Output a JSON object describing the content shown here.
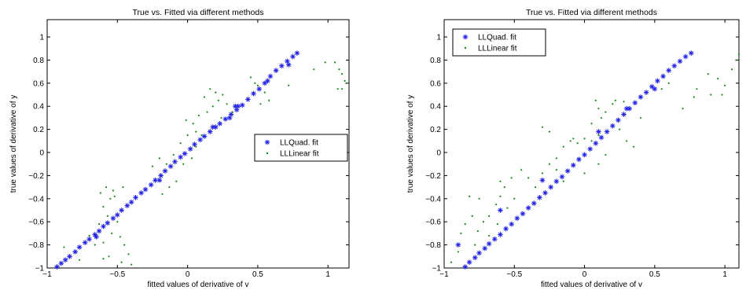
{
  "chart_data": [
    {
      "type": "scatter",
      "title": "True vs. Fitted via different methods",
      "xlabel": "fitted values of derivative of v",
      "ylabel": "true values of derivative of y",
      "xlim": [
        -1,
        1.15
      ],
      "ylim": [
        -1,
        1.15
      ],
      "xticks": [
        -1,
        -0.5,
        0,
        0.5,
        1
      ],
      "xtick_labels": [
        "−1",
        "−0.5",
        "0",
        "0.5",
        "1"
      ],
      "yticks": [
        -1,
        -0.8,
        -0.6,
        -0.4,
        -0.2,
        0,
        0.2,
        0.4,
        0.6,
        0.8,
        1
      ],
      "ytick_labels": [
        "−1",
        "−0.8",
        "−0.6",
        "−0.4",
        "−0.2",
        "0",
        "0.2",
        "0.4",
        "0.6",
        "0.8",
        "1"
      ],
      "grid": false,
      "legend_position": "right-middle",
      "series": [
        {
          "name": "LLQuad. fit",
          "marker": "asterisk",
          "color": "#1f1fe6",
          "points": [
            [
              -0.93,
              -0.99
            ],
            [
              -0.9,
              -0.96
            ],
            [
              -0.87,
              -0.93
            ],
            [
              -0.84,
              -0.9
            ],
            [
              -0.8,
              -0.86
            ],
            [
              -0.77,
              -0.82
            ],
            [
              -0.73,
              -0.78
            ],
            [
              -0.7,
              -0.75
            ],
            [
              -0.66,
              -0.71
            ],
            [
              -0.63,
              -0.68
            ],
            [
              -0.6,
              -0.64
            ],
            [
              -0.57,
              -0.61
            ],
            [
              -0.53,
              -0.57
            ],
            [
              -0.5,
              -0.54
            ],
            [
              -0.47,
              -0.5
            ],
            [
              -0.43,
              -0.46
            ],
            [
              -0.4,
              -0.43
            ],
            [
              -0.37,
              -0.39
            ],
            [
              -0.33,
              -0.35
            ],
            [
              -0.3,
              -0.32
            ],
            [
              -0.26,
              -0.28
            ],
            [
              -0.23,
              -0.24
            ],
            [
              -0.19,
              -0.2
            ],
            [
              -0.16,
              -0.16
            ],
            [
              -0.12,
              -0.12
            ],
            [
              -0.09,
              -0.08
            ],
            [
              -0.05,
              -0.04
            ],
            [
              -0.02,
              -0.01
            ],
            [
              0.02,
              0.03
            ],
            [
              0.05,
              0.07
            ],
            [
              0.09,
              0.11
            ],
            [
              0.12,
              0.14
            ],
            [
              0.16,
              0.18
            ],
            [
              0.2,
              0.22
            ],
            [
              0.23,
              0.25
            ],
            [
              0.27,
              0.29
            ],
            [
              0.31,
              0.33
            ],
            [
              0.35,
              0.37
            ],
            [
              0.39,
              0.41
            ],
            [
              0.43,
              0.46
            ],
            [
              0.47,
              0.51
            ],
            [
              0.51,
              0.55
            ],
            [
              0.55,
              0.6
            ],
            [
              0.59,
              0.66
            ],
            [
              0.63,
              0.71
            ],
            [
              0.67,
              0.75
            ],
            [
              0.71,
              0.79
            ],
            [
              0.75,
              0.83
            ],
            [
              0.78,
              0.86
            ],
            [
              -0.2,
              -0.24
            ],
            [
              0.18,
              0.22
            ],
            [
              0.34,
              0.4
            ],
            [
              0.57,
              0.62
            ],
            [
              -0.65,
              -0.73
            ],
            [
              0.72,
              0.76
            ],
            [
              0.3,
              0.3
            ],
            [
              0.36,
              0.4
            ]
          ]
        },
        {
          "name": "LLLinear fit",
          "marker": "dot",
          "color": "#1a8a1a",
          "points": [
            [
              -0.62,
              -0.35
            ],
            [
              -0.58,
              -0.3
            ],
            [
              -0.55,
              -0.4
            ],
            [
              -0.6,
              -0.47
            ],
            [
              -0.52,
              -0.38
            ],
            [
              -0.57,
              -0.55
            ],
            [
              -0.63,
              -0.62
            ],
            [
              -0.5,
              -0.6
            ],
            [
              -0.54,
              -0.7
            ],
            [
              -0.6,
              -0.78
            ],
            [
              -0.48,
              -0.73
            ],
            [
              -0.45,
              -0.8
            ],
            [
              -0.42,
              -0.88
            ],
            [
              -0.47,
              -0.95
            ],
            [
              -0.56,
              -0.9
            ],
            [
              -0.66,
              -0.8
            ],
            [
              -0.7,
              -0.72
            ],
            [
              -0.6,
              -0.92
            ],
            [
              -0.88,
              -0.82
            ],
            [
              -0.77,
              -0.93
            ],
            [
              -0.4,
              -0.97
            ],
            [
              -0.53,
              -0.33
            ],
            [
              -0.46,
              -0.3
            ],
            [
              -0.13,
              -0.3
            ],
            [
              -0.18,
              -0.36
            ],
            [
              -0.08,
              -0.25
            ],
            [
              -0.03,
              -0.1
            ],
            [
              0.03,
              -0.05
            ],
            [
              0.06,
              0.05
            ],
            [
              0.1,
              0.15
            ],
            [
              0.04,
              0.25
            ],
            [
              -0.01,
              0.28
            ],
            [
              0.08,
              0.32
            ],
            [
              0.14,
              0.35
            ],
            [
              0.18,
              0.4
            ],
            [
              0.22,
              0.45
            ],
            [
              0.2,
              0.52
            ],
            [
              0.16,
              0.55
            ],
            [
              0.12,
              0.48
            ],
            [
              0.25,
              0.5
            ],
            [
              0.28,
              0.42
            ],
            [
              0.06,
              0.18
            ],
            [
              -0.05,
              0.08
            ],
            [
              -0.1,
              -0.02
            ],
            [
              -0.15,
              -0.1
            ],
            [
              0.45,
              0.65
            ],
            [
              0.48,
              0.6
            ],
            [
              0.5,
              0.58
            ],
            [
              0.55,
              0.52
            ],
            [
              0.58,
              0.45
            ],
            [
              0.52,
              0.42
            ],
            [
              0.9,
              0.72
            ],
            [
              0.98,
              0.78
            ],
            [
              1.05,
              0.78
            ],
            [
              1.08,
              0.72
            ],
            [
              1.1,
              0.68
            ],
            [
              1.12,
              0.62
            ],
            [
              1.07,
              0.55
            ],
            [
              1.1,
              0.55
            ],
            [
              1.13,
              0.6
            ],
            [
              0.72,
              0.58
            ],
            [
              0.24,
              0.3
            ],
            [
              0.32,
              0.35
            ],
            [
              0.0,
              0.15
            ],
            [
              -0.2,
              -0.05
            ],
            [
              -0.25,
              -0.12
            ]
          ]
        }
      ]
    },
    {
      "type": "scatter",
      "title": "True vs. Fitted via different methods",
      "xlabel": "fitted values of derivative of v",
      "ylabel": "true values of derivative of y",
      "xlim": [
        -1,
        1.1
      ],
      "ylim": [
        -1,
        1.15
      ],
      "xticks": [
        -1,
        -0.5,
        0,
        0.5,
        1
      ],
      "xtick_labels": [
        "−1",
        "−0.5",
        "0",
        "0.5",
        "1"
      ],
      "yticks": [
        -1,
        -0.8,
        -0.6,
        -0.4,
        -0.2,
        0,
        0.2,
        0.4,
        0.6,
        0.8,
        1
      ],
      "ytick_labels": [
        "−1",
        "−0.8",
        "−0.6",
        "−0.4",
        "−0.2",
        "0",
        "0.2",
        "0.4",
        "0.6",
        "0.8",
        "1"
      ],
      "grid": false,
      "legend_position": "top-left",
      "series": [
        {
          "name": "LLQuad. fit",
          "marker": "asterisk",
          "color": "#1f1fe6",
          "points": [
            [
              -0.85,
              -0.99
            ],
            [
              -0.82,
              -0.95
            ],
            [
              -0.78,
              -0.91
            ],
            [
              -0.75,
              -0.87
            ],
            [
              -0.71,
              -0.83
            ],
            [
              -0.68,
              -0.79
            ],
            [
              -0.64,
              -0.75
            ],
            [
              -0.6,
              -0.71
            ],
            [
              -0.56,
              -0.66
            ],
            [
              -0.52,
              -0.62
            ],
            [
              -0.48,
              -0.57
            ],
            [
              -0.44,
              -0.53
            ],
            [
              -0.4,
              -0.48
            ],
            [
              -0.36,
              -0.44
            ],
            [
              -0.32,
              -0.39
            ],
            [
              -0.28,
              -0.35
            ],
            [
              -0.24,
              -0.3
            ],
            [
              -0.2,
              -0.25
            ],
            [
              -0.16,
              -0.21
            ],
            [
              -0.12,
              -0.16
            ],
            [
              -0.08,
              -0.11
            ],
            [
              -0.04,
              -0.06
            ],
            [
              0.0,
              -0.02
            ],
            [
              0.04,
              0.03
            ],
            [
              0.08,
              0.08
            ],
            [
              0.12,
              0.13
            ],
            [
              0.16,
              0.18
            ],
            [
              0.2,
              0.23
            ],
            [
              0.24,
              0.28
            ],
            [
              0.28,
              0.33
            ],
            [
              0.32,
              0.38
            ],
            [
              0.36,
              0.43
            ],
            [
              0.4,
              0.48
            ],
            [
              0.44,
              0.52
            ],
            [
              0.48,
              0.57
            ],
            [
              0.52,
              0.62
            ],
            [
              0.56,
              0.66
            ],
            [
              0.6,
              0.71
            ],
            [
              0.64,
              0.75
            ],
            [
              0.68,
              0.79
            ],
            [
              0.72,
              0.83
            ],
            [
              0.76,
              0.86
            ],
            [
              -0.9,
              -0.8
            ],
            [
              -0.6,
              -0.5
            ],
            [
              -0.3,
              -0.24
            ],
            [
              0.1,
              0.18
            ],
            [
              0.3,
              0.38
            ],
            [
              0.5,
              0.55
            ]
          ]
        },
        {
          "name": "LLLinear fit",
          "marker": "dot",
          "color": "#1a8a1a",
          "points": [
            [
              -0.95,
              -0.95
            ],
            [
              -0.9,
              -0.86
            ],
            [
              -0.88,
              -0.7
            ],
            [
              -0.85,
              -0.62
            ],
            [
              -0.8,
              -0.55
            ],
            [
              -0.76,
              -0.68
            ],
            [
              -0.72,
              -0.6
            ],
            [
              -0.68,
              -0.55
            ],
            [
              -0.63,
              -0.45
            ],
            [
              -0.6,
              -0.38
            ],
            [
              -0.57,
              -0.3
            ],
            [
              -0.52,
              -0.22
            ],
            [
              -0.45,
              -0.15
            ],
            [
              -0.4,
              -0.22
            ],
            [
              -0.35,
              -0.3
            ],
            [
              -0.3,
              -0.18
            ],
            [
              -0.25,
              -0.1
            ],
            [
              -0.2,
              -0.05
            ],
            [
              -0.15,
              0.05
            ],
            [
              -0.1,
              0.1
            ],
            [
              -0.05,
              0.08
            ],
            [
              0.0,
              0.12
            ],
            [
              0.05,
              0.1
            ],
            [
              0.1,
              0.15
            ],
            [
              -0.3,
              0.22
            ],
            [
              -0.25,
              0.18
            ],
            [
              0.12,
              0.3
            ],
            [
              0.15,
              0.35
            ],
            [
              0.2,
              0.42
            ],
            [
              0.22,
              0.45
            ],
            [
              0.28,
              0.44
            ],
            [
              0.1,
              0.38
            ],
            [
              0.05,
              0.25
            ],
            [
              0.08,
              0.45
            ],
            [
              -0.08,
              0.12
            ],
            [
              -0.2,
              -0.15
            ],
            [
              -0.15,
              -0.25
            ],
            [
              0.0,
              -0.18
            ],
            [
              0.1,
              -0.1
            ],
            [
              0.15,
              -0.02
            ],
            [
              0.3,
              0.1
            ],
            [
              0.25,
              0.2
            ],
            [
              -0.5,
              -0.4
            ],
            [
              -0.55,
              -0.48
            ],
            [
              -0.68,
              -0.72
            ],
            [
              -0.78,
              -0.8
            ],
            [
              -0.62,
              -0.62
            ],
            [
              0.55,
              0.55
            ],
            [
              0.6,
              0.6
            ],
            [
              0.7,
              0.38
            ],
            [
              0.78,
              0.48
            ],
            [
              0.8,
              0.55
            ],
            [
              0.88,
              0.68
            ],
            [
              0.95,
              0.64
            ],
            [
              1.0,
              0.58
            ],
            [
              1.05,
              0.72
            ],
            [
              1.08,
              0.8
            ],
            [
              1.1,
              0.85
            ],
            [
              0.9,
              0.5
            ],
            [
              0.98,
              0.5
            ],
            [
              -0.75,
              -0.4
            ],
            [
              -0.82,
              -0.38
            ],
            [
              -0.6,
              -0.25
            ],
            [
              0.35,
              0.05
            ],
            [
              0.4,
              0.3
            ]
          ]
        }
      ]
    }
  ]
}
